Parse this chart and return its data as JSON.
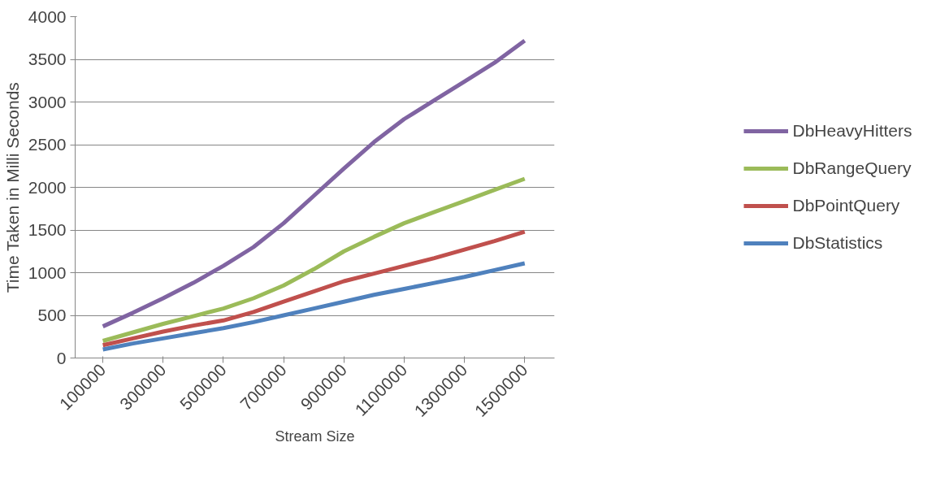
{
  "chart_data": {
    "type": "line",
    "xlabel": "Stream Size",
    "ylabel": "Time Taken in Milli Seconds",
    "x": [
      100000,
      200000,
      300000,
      400000,
      500000,
      600000,
      700000,
      800000,
      900000,
      1000000,
      1100000,
      1200000,
      1300000,
      1400000,
      1500000
    ],
    "series": [
      {
        "name": "DbHeavyHitters",
        "color": "#8064a2",
        "values": [
          370,
          530,
          700,
          880,
          1080,
          1300,
          1580,
          1900,
          2220,
          2530,
          2800,
          3020,
          3240,
          3460,
          3720
        ]
      },
      {
        "name": "DbRangeQuery",
        "color": "#9bbb59",
        "values": [
          200,
          300,
          400,
          490,
          580,
          700,
          850,
          1040,
          1250,
          1420,
          1580,
          1710,
          1840,
          1970,
          2100
        ]
      },
      {
        "name": "DbPointQuery",
        "color": "#c0504d",
        "values": [
          150,
          230,
          310,
          380,
          440,
          540,
          660,
          780,
          900,
          990,
          1080,
          1170,
          1270,
          1370,
          1480
        ]
      },
      {
        "name": "DbStatistics",
        "color": "#4f81bd",
        "values": [
          100,
          170,
          230,
          290,
          350,
          420,
          500,
          580,
          660,
          740,
          810,
          880,
          950,
          1030,
          1110
        ]
      }
    ],
    "xlim": [
      8000,
      1599000
    ],
    "xticks": [
      100000,
      300000,
      500000,
      700000,
      900000,
      1100000,
      1300000,
      1500000
    ],
    "ylim": [
      0,
      4000
    ],
    "yticks": [
      0,
      500,
      1000,
      1500,
      2000,
      2500,
      3000,
      3500,
      4000
    ],
    "grid": "y",
    "legend": "right",
    "line_style": "solid",
    "marker": "none"
  }
}
